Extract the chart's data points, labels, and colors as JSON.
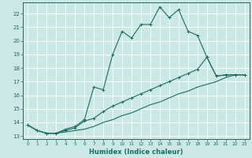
{
  "xlabel": "Humidex (Indice chaleur)",
  "bg_color": "#cce8e4",
  "grid_color": "#ffffff",
  "line_color": "#1a6e64",
  "xlim": [
    -0.5,
    23.5
  ],
  "ylim": [
    12.8,
    22.8
  ],
  "xticks": [
    0,
    1,
    2,
    3,
    4,
    5,
    6,
    7,
    8,
    9,
    10,
    11,
    12,
    13,
    14,
    15,
    16,
    17,
    18,
    19,
    20,
    21,
    22,
    23
  ],
  "yticks": [
    13,
    14,
    15,
    16,
    17,
    18,
    19,
    20,
    21,
    22
  ],
  "line1_x": [
    0,
    1,
    2,
    3,
    4,
    5,
    6,
    7,
    8,
    9,
    10,
    11,
    12,
    13,
    14,
    15,
    16,
    17,
    18,
    19,
    20,
    21,
    22,
    23
  ],
  "line1_y": [
    13.8,
    13.4,
    13.2,
    13.2,
    13.5,
    13.7,
    14.2,
    16.6,
    16.4,
    19.0,
    20.7,
    20.2,
    21.2,
    21.2,
    22.5,
    21.7,
    22.3,
    20.7,
    20.4,
    18.8,
    17.4,
    17.5,
    17.5,
    17.5
  ],
  "line2_x": [
    0,
    1,
    2,
    3,
    4,
    5,
    6,
    7,
    8,
    9,
    10,
    11,
    12,
    13,
    14,
    15,
    16,
    17,
    18,
    19,
    20,
    21,
    22,
    23
  ],
  "line2_y": [
    13.8,
    13.4,
    13.2,
    13.2,
    13.4,
    13.6,
    14.1,
    14.3,
    14.8,
    15.2,
    15.5,
    15.8,
    16.1,
    16.4,
    16.7,
    17.0,
    17.3,
    17.6,
    17.9,
    18.8,
    17.4,
    17.5,
    17.5,
    17.5
  ],
  "line3_x": [
    0,
    1,
    2,
    3,
    4,
    5,
    6,
    7,
    8,
    9,
    10,
    11,
    12,
    13,
    14,
    15,
    16,
    17,
    18,
    19,
    20,
    21,
    22,
    23
  ],
  "line3_y": [
    13.8,
    13.4,
    13.2,
    13.2,
    13.3,
    13.4,
    13.5,
    13.7,
    14.0,
    14.2,
    14.5,
    14.7,
    15.0,
    15.3,
    15.5,
    15.8,
    16.1,
    16.3,
    16.6,
    16.8,
    17.0,
    17.3,
    17.5,
    17.5
  ]
}
